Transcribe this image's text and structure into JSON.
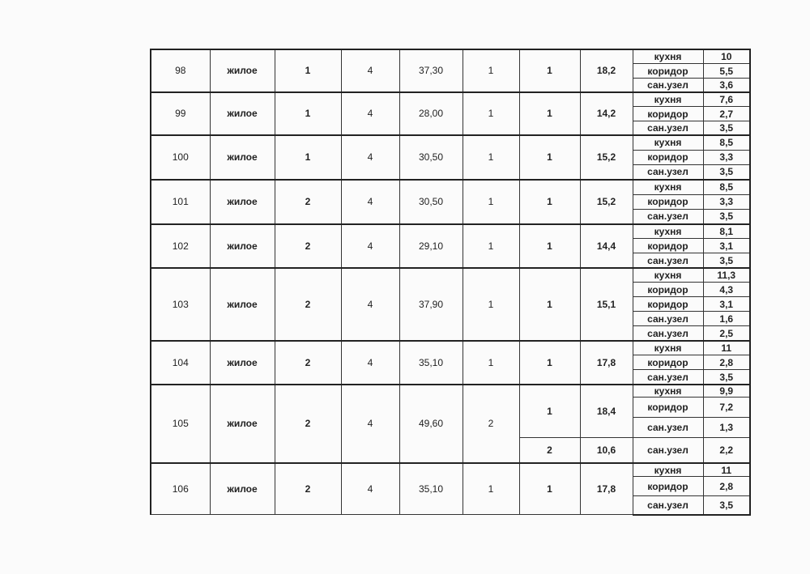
{
  "rows": [
    {
      "num": "98",
      "type": "жилое",
      "c3": "1",
      "c4": "4",
      "area": "37,30",
      "rooms": "1",
      "sub": [
        {
          "n": "1",
          "living": "18,2",
          "items": [
            {
              "name": "кухня",
              "val": "10"
            },
            {
              "name": "коридор",
              "val": "5,5"
            },
            {
              "name": "сан.узел",
              "val": "3,6"
            }
          ]
        }
      ]
    },
    {
      "num": "99",
      "type": "жилое",
      "c3": "1",
      "c4": "4",
      "area": "28,00",
      "rooms": "1",
      "sub": [
        {
          "n": "1",
          "living": "14,2",
          "items": [
            {
              "name": "кухня",
              "val": "7,6"
            },
            {
              "name": "коридор",
              "val": "2,7"
            },
            {
              "name": "сан.узел",
              "val": "3,5"
            }
          ]
        }
      ]
    },
    {
      "num": "100",
      "type": "жилое",
      "c3": "1",
      "c4": "4",
      "area": "30,50",
      "rooms": "1",
      "sub": [
        {
          "n": "1",
          "living": "15,2",
          "items": [
            {
              "name": "кухня",
              "val": "8,5"
            },
            {
              "name": "коридор",
              "val": "3,3"
            },
            {
              "name": "сан.узел",
              "val": "3,5"
            }
          ]
        }
      ]
    },
    {
      "num": "101",
      "type": "жилое",
      "c3": "2",
      "c4": "4",
      "area": "30,50",
      "rooms": "1",
      "sub": [
        {
          "n": "1",
          "living": "15,2",
          "items": [
            {
              "name": "кухня",
              "val": "8,5"
            },
            {
              "name": "коридор",
              "val": "3,3"
            },
            {
              "name": "сан.узел",
              "val": "3,5"
            }
          ]
        }
      ]
    },
    {
      "num": "102",
      "type": "жилое",
      "c3": "2",
      "c4": "4",
      "area": "29,10",
      "rooms": "1",
      "sub": [
        {
          "n": "1",
          "living": "14,4",
          "items": [
            {
              "name": "кухня",
              "val": "8,1"
            },
            {
              "name": "коридор",
              "val": "3,1"
            },
            {
              "name": "сан.узел",
              "val": "3,5"
            }
          ]
        }
      ]
    },
    {
      "num": "103",
      "type": "жилое",
      "c3": "2",
      "c4": "4",
      "area": "37,90",
      "rooms": "1",
      "sub": [
        {
          "n": "1",
          "living": "15,1",
          "items": [
            {
              "name": "кухня",
              "val": "11,3"
            },
            {
              "name": "коридор",
              "val": "4,3"
            },
            {
              "name": "коридор",
              "val": "3,1"
            },
            {
              "name": "сан.узел",
              "val": "1,6"
            },
            {
              "name": "сан.узел",
              "val": "2,5"
            }
          ]
        }
      ]
    },
    {
      "num": "104",
      "type": "жилое",
      "c3": "2",
      "c4": "4",
      "area": "35,10",
      "rooms": "1",
      "sub": [
        {
          "n": "1",
          "living": "17,8",
          "items": [
            {
              "name": "кухня",
              "val": "11"
            },
            {
              "name": "коридор",
              "val": "2,8"
            },
            {
              "name": "сан.узел",
              "val": "3,5"
            }
          ]
        }
      ]
    },
    {
      "num": "105",
      "type": "жилое",
      "c3": "2",
      "c4": "4",
      "area": "49,60",
      "rooms": "2",
      "sub": [
        {
          "n": "1",
          "living": "18,4",
          "items": [
            {
              "name": "кухня",
              "val": "9,9"
            },
            {
              "name": "коридор",
              "val": "7,2"
            },
            {
              "name": "сан.узел",
              "val": "1,3"
            }
          ]
        },
        {
          "n": "2",
          "living": "10,6",
          "items": [
            {
              "name": "сан.узел",
              "val": "2,2"
            }
          ]
        }
      ]
    },
    {
      "num": "106",
      "type": "жилое",
      "c3": "2",
      "c4": "4",
      "area": "35,10",
      "rooms": "1",
      "sub": [
        {
          "n": "1",
          "living": "17,8",
          "items": [
            {
              "name": "кухня",
              "val": "11"
            },
            {
              "name": "коридор",
              "val": "2,8"
            },
            {
              "name": "сан.узел",
              "val": "3,5"
            }
          ]
        }
      ]
    }
  ]
}
